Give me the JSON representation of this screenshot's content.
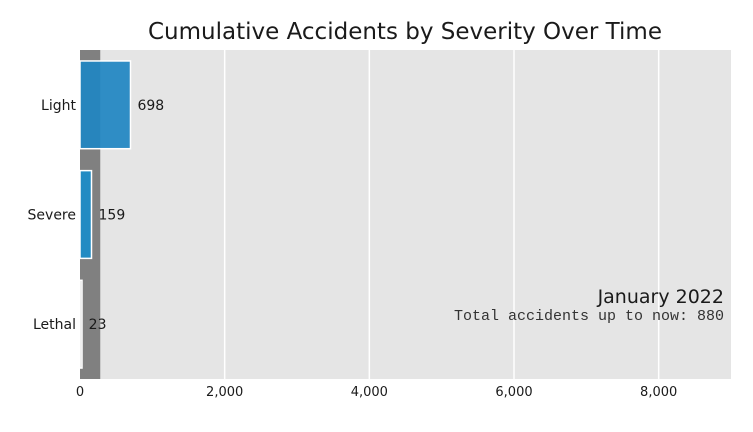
{
  "chart_data": {
    "type": "bar",
    "orientation": "horizontal",
    "title": "Cumulative Accidents by Severity Over Time",
    "categories": [
      "Light",
      "Severe",
      "Lethal"
    ],
    "values": [
      698,
      159,
      23
    ],
    "value_labels": [
      "698",
      "159",
      "23"
    ],
    "xlim": [
      0,
      9000
    ],
    "xticks": [
      0,
      2000,
      4000,
      6000,
      8000
    ],
    "xtick_labels": [
      "0",
      "2,000",
      "4,000",
      "6,000",
      "8,000"
    ],
    "highlight_band": [
      0,
      280
    ],
    "grid": true,
    "date_label": "January 2022",
    "total_label": "Total accidents up to now: 880",
    "colors": {
      "background": "#e5e5e5",
      "grid": "#ffffff",
      "band": "#808080",
      "bars": [
        "#1f85c2",
        "#1a8cc9",
        "#c8c8c8"
      ]
    }
  }
}
